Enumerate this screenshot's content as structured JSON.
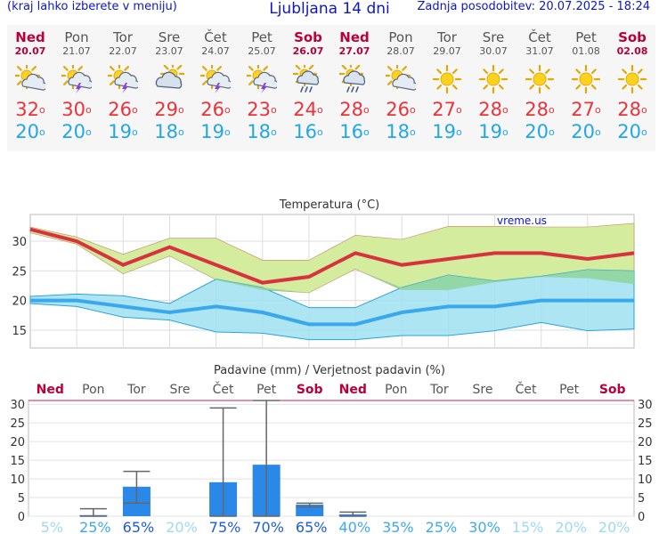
{
  "header": {
    "hint": "(kraj lahko izberete v meniju)",
    "title": "Ljubljana 14 dni",
    "updated": "Zadnja posodobitev: 20.07.2025 - 18:24"
  },
  "days": [
    {
      "name": "Ned",
      "date": "20.07",
      "weekend": true,
      "icon": "sun-cloud-icon",
      "tmax": "32",
      "tmin": "20"
    },
    {
      "name": "Pon",
      "date": "21.07",
      "weekend": false,
      "icon": "sun-thunder-icon",
      "tmax": "30",
      "tmin": "20"
    },
    {
      "name": "Tor",
      "date": "22.07",
      "weekend": false,
      "icon": "sun-thunder-icon",
      "tmax": "26",
      "tmin": "19"
    },
    {
      "name": "Sre",
      "date": "23.07",
      "weekend": false,
      "icon": "cloudy-sun-icon",
      "tmax": "29",
      "tmin": "18"
    },
    {
      "name": "Čet",
      "date": "24.07",
      "weekend": false,
      "icon": "sun-thunder-icon",
      "tmax": "26",
      "tmin": "19"
    },
    {
      "name": "Pet",
      "date": "25.07",
      "weekend": false,
      "icon": "sun-thunder-icon",
      "tmax": "23",
      "tmin": "18"
    },
    {
      "name": "Sob",
      "date": "26.07",
      "weekend": true,
      "icon": "sun-rain-icon",
      "tmax": "24",
      "tmin": "16"
    },
    {
      "name": "Ned",
      "date": "27.07",
      "weekend": true,
      "icon": "sun-rain-icon",
      "tmax": "28",
      "tmin": "16"
    },
    {
      "name": "Pon",
      "date": "28.07",
      "weekend": false,
      "icon": "sun-cloud-icon",
      "tmax": "26",
      "tmin": "18"
    },
    {
      "name": "Tor",
      "date": "29.07",
      "weekend": false,
      "icon": "sun-icon",
      "tmax": "27",
      "tmin": "19"
    },
    {
      "name": "Sre",
      "date": "30.07",
      "weekend": false,
      "icon": "sun-icon",
      "tmax": "28",
      "tmin": "19"
    },
    {
      "name": "Čet",
      "date": "31.07",
      "weekend": false,
      "icon": "sun-icon",
      "tmax": "28",
      "tmin": "20"
    },
    {
      "name": "Pet",
      "date": "01.08",
      "weekend": false,
      "icon": "sun-icon",
      "tmax": "27",
      "tmin": "20"
    },
    {
      "name": "Sob",
      "date": "02.08",
      "weekend": true,
      "icon": "sun-icon",
      "tmax": "28",
      "tmin": "20"
    }
  ],
  "colors": {
    "weekend": "#b8003a",
    "weekday": "#555555",
    "tmax": "#e8333b",
    "tmin": "#23a6e8",
    "maxBand": "#d3ec9d",
    "minBand": "#9fe1f0",
    "overlap": "#8ed496",
    "precip": "#2a88e8"
  },
  "chart_data": [
    {
      "type": "line",
      "title": "Temperatura (°C)",
      "watermark": "vreme.us",
      "x": [
        "20.07",
        "21.07",
        "22.07",
        "23.07",
        "24.07",
        "25.07",
        "26.07",
        "27.07",
        "28.07",
        "29.07",
        "30.07",
        "31.07",
        "01.08",
        "02.08"
      ],
      "ylim": [
        12,
        34.5
      ],
      "yticks": [
        15,
        20,
        25,
        30
      ],
      "series": [
        {
          "name": "max",
          "values": [
            32,
            30,
            26,
            29,
            26,
            23,
            24,
            28,
            26,
            27,
            28,
            28,
            27,
            28
          ],
          "band_low": [
            31.4,
            29.5,
            24.5,
            27.5,
            23.5,
            21.8,
            21.3,
            25.3,
            21.8,
            21.8,
            23.1,
            24,
            23.8,
            22.8
          ],
          "band_high": [
            32.4,
            30.7,
            27.8,
            30.5,
            30.5,
            26.8,
            26.8,
            31,
            30.3,
            32.5,
            32.5,
            32.4,
            32.4,
            33
          ]
        },
        {
          "name": "min",
          "values": [
            20,
            20,
            19,
            18,
            19,
            18,
            16,
            16,
            18,
            19,
            19,
            20,
            20,
            20
          ],
          "band_low": [
            19.5,
            19,
            17.2,
            16.7,
            14.7,
            14.5,
            13.4,
            13.4,
            14.1,
            14.1,
            14.9,
            16.3,
            14.9,
            15.2
          ],
          "band_high": [
            20.7,
            21.1,
            20.8,
            19.5,
            23.6,
            22.2,
            18.8,
            18.8,
            22.2,
            24.3,
            23.3,
            24.1,
            25.2,
            25
          ]
        }
      ]
    },
    {
      "type": "bar",
      "title": "Padavine (mm) / Verjetnost padavin (%)",
      "categories": [
        "Ned",
        "Pon",
        "Tor",
        "Sre",
        "Čet",
        "Pet",
        "Sob",
        "Ned",
        "Pon",
        "Tor",
        "Sre",
        "Čet",
        "Pet",
        "Sob"
      ],
      "values": [
        0,
        0.3,
        7.9,
        0,
        9.1,
        13.8,
        3.1,
        0.5,
        0,
        0,
        0,
        0,
        0,
        0
      ],
      "error_low": [
        0,
        0,
        3.5,
        0,
        0,
        0,
        2.5,
        0,
        0,
        0,
        0,
        0,
        0,
        0
      ],
      "error_high": [
        0,
        2,
        12,
        0,
        29,
        31,
        3.5,
        1.1,
        0,
        0,
        0,
        0,
        0,
        0
      ],
      "probability": [
        "5%",
        "25%",
        "65%",
        "20%",
        "75%",
        "70%",
        "65%",
        "40%",
        "35%",
        "25%",
        "30%",
        "15%",
        "20%",
        "20%"
      ],
      "ylim": [
        0,
        31
      ],
      "yticks": [
        0,
        5,
        10,
        15,
        20,
        25,
        30
      ]
    }
  ]
}
